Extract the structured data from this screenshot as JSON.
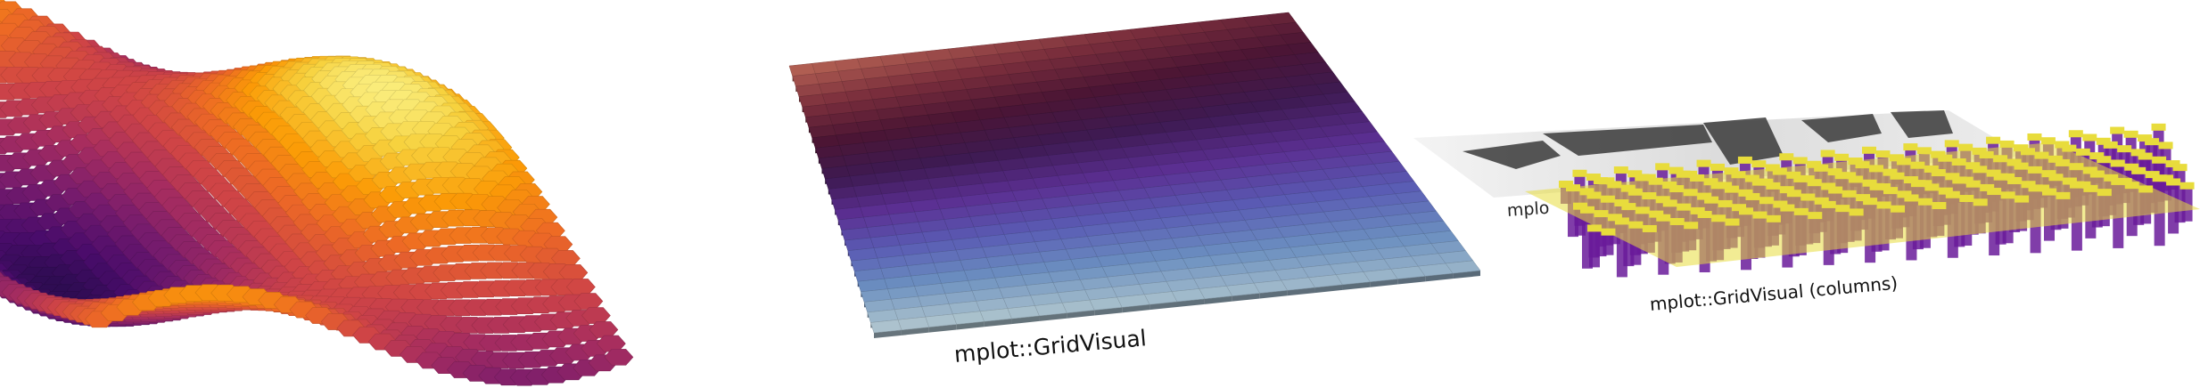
{
  "captions": {
    "middle": "mplot::GridVisual",
    "right": "mplot::GridVisual (columns)",
    "right_occluded_prefix": "mplo"
  },
  "panels": [
    {
      "name": "hexgrid-surface",
      "colormap": "inferno"
    },
    {
      "name": "grid-visual",
      "colormap": "twilight"
    },
    {
      "name": "grid-visual-columns",
      "colormap": "plasma",
      "image": "grayscale photo"
    }
  ],
  "colors": {
    "background": "#ffffff",
    "inferno": [
      "#1b0c41",
      "#4a0c6b",
      "#781c6d",
      "#a52c60",
      "#cf4446",
      "#ed6925",
      "#fb9b06",
      "#f7d13d",
      "#fcffa4"
    ],
    "twilight": [
      "#e2d9e2",
      "#a8c0cc",
      "#6b8fc0",
      "#5a5cb4",
      "#5b2f92",
      "#3e1a52",
      "#4b1534",
      "#7a2e3c",
      "#b05e52"
    ],
    "plasma_yellow": "#e8dc3c",
    "plasma_purple": "#6a1b9a"
  }
}
